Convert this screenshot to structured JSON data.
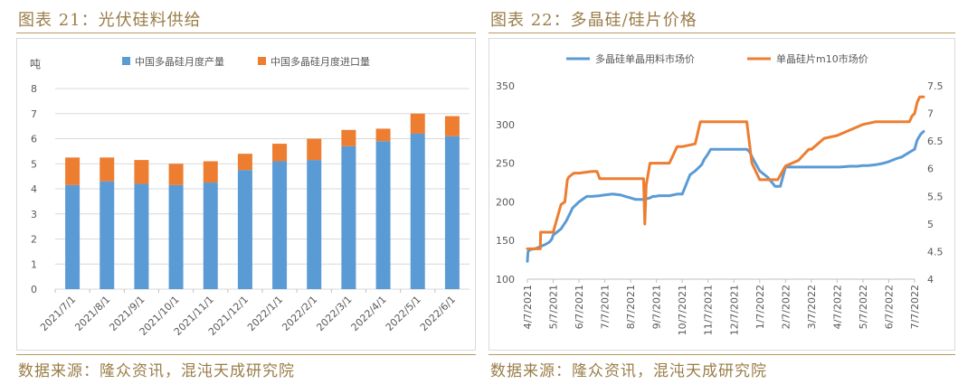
{
  "left": {
    "title": "图表 21：光伏硅料供给",
    "source": "数据来源：隆众资讯，混沌天成研究院"
  },
  "right": {
    "title": "图表 22：多晶硅/硅片价格",
    "source": "数据来源：隆众资讯，混沌天成研究院"
  },
  "colors": {
    "blue": "#5b9bd5",
    "orange": "#ed7d31",
    "gold": "#9a7d48",
    "grid": "#d9d9d9"
  },
  "chart_data": [
    {
      "type": "bar",
      "stacked": true,
      "unit_label": "吨",
      "categories": [
        "2021/7/1",
        "2021/8/1",
        "2021/9/1",
        "2021/10/1",
        "2021/11/1",
        "2021/12/1",
        "2022/1/1",
        "2022/2/1",
        "2022/3/1",
        "2022/4/1",
        "2022/5/1",
        "2022/6/1"
      ],
      "series": [
        {
          "name": "中国多晶硅月度产量",
          "color": "#5b9bd5",
          "values": [
            4.15,
            4.3,
            4.2,
            4.15,
            4.25,
            4.75,
            5.1,
            5.15,
            5.7,
            5.9,
            6.2,
            6.1
          ]
        },
        {
          "name": "中国多晶硅月度进口量",
          "color": "#ed7d31",
          "values": [
            1.1,
            0.95,
            0.95,
            0.85,
            0.85,
            0.65,
            0.7,
            0.85,
            0.65,
            0.5,
            0.8,
            0.8
          ]
        }
      ],
      "ylim": [
        0,
        8
      ],
      "yticks": [
        "0",
        "1",
        "2",
        "3",
        "4",
        "5",
        "6",
        "7",
        "8"
      ],
      "legend": "top",
      "grid": true
    },
    {
      "type": "line",
      "dual_axis": true,
      "x_tick_labels": [
        "4/7/2021",
        "5/7/2021",
        "6/7/2021",
        "7/7/2021",
        "8/7/2021",
        "9/7/2021",
        "10/7/2021",
        "11/7/2021",
        "12/7/2021",
        "1/7/2022",
        "2/7/2022",
        "3/7/2022",
        "4/7/2022",
        "5/7/2022",
        "6/7/2022",
        "7/7/2022"
      ],
      "ylim_left": [
        100,
        350
      ],
      "yticks_left": [
        "100",
        "150",
        "200",
        "250",
        "300",
        "350"
      ],
      "ylim_right": [
        4,
        7.5
      ],
      "yticks_right": [
        "4",
        "4.5",
        "5",
        "5.5",
        "6",
        "6.5",
        "7",
        "7.5"
      ],
      "legend": "top",
      "grid": false,
      "series": [
        {
          "name": "多晶硅单晶用料市场价",
          "axis": "left",
          "color": "#5b9bd5",
          "x": [
            0,
            0.02,
            0.08,
            0.35,
            0.7,
            0.85,
            0.95,
            1.0,
            1.3,
            1.5,
            1.65,
            1.75,
            2.0,
            2.3,
            2.5,
            2.8,
            3.0,
            3.3,
            3.6,
            3.8,
            4.0,
            4.2,
            4.5,
            4.75,
            4.85,
            4.95,
            5.1,
            5.3,
            5.5,
            5.8,
            6.0,
            6.3,
            6.5,
            6.75,
            6.85,
            7.0,
            7.1,
            7.2,
            7.5,
            7.8,
            8.0,
            8.2,
            8.4,
            8.5,
            8.6,
            8.75,
            9.0,
            9.3,
            9.6,
            9.8,
            10.0,
            10.5,
            11.0,
            11.3,
            11.6,
            11.9,
            12.0,
            12.1,
            12.5,
            12.8,
            13.0,
            13.2,
            13.5,
            13.8,
            14.0,
            14.3,
            14.5,
            14.6,
            14.7,
            14.8,
            14.9,
            15.0,
            15.1,
            15.25,
            15.35
          ],
          "values": [
            123,
            135,
            138,
            140,
            145,
            148,
            152,
            157,
            165,
            175,
            185,
            192,
            200,
            207,
            207,
            208,
            209,
            210,
            209,
            207,
            205,
            203,
            203,
            205,
            207,
            207,
            208,
            208,
            208,
            210,
            210,
            235,
            240,
            248,
            255,
            262,
            268,
            268,
            268,
            268,
            268,
            268,
            268,
            268,
            265,
            255,
            240,
            232,
            220,
            220,
            245,
            245,
            245,
            245,
            245,
            245,
            245,
            245,
            246,
            246,
            247,
            247,
            248,
            250,
            252,
            256,
            258,
            260,
            262,
            264,
            266,
            268,
            280,
            288,
            291
          ]
        },
        {
          "name": "单晶硅片m10市场价",
          "axis": "right",
          "color": "#ed7d31",
          "x": [
            0,
            0.1,
            0.5,
            0.51,
            1.0,
            1.3,
            1.45,
            1.5,
            1.55,
            1.6,
            1.8,
            2.0,
            2.5,
            2.7,
            2.8,
            3.5,
            4.0,
            4.3,
            4.5,
            4.55,
            4.6,
            4.75,
            4.8,
            5.0,
            5.5,
            5.8,
            6.0,
            6.5,
            6.7,
            7.0,
            7.5,
            8.0,
            8.5,
            8.7,
            9.0,
            9.3,
            9.5,
            9.7,
            10.0,
            10.5,
            10.9,
            11.0,
            11.5,
            12.0,
            12.5,
            13.0,
            13.5,
            14.0,
            14.5,
            14.8,
            14.9,
            15.0,
            15.1,
            15.2,
            15.35
          ],
          "values": [
            4.55,
            4.55,
            4.55,
            4.85,
            4.85,
            5.35,
            5.4,
            5.6,
            5.8,
            5.85,
            5.92,
            5.92,
            5.95,
            5.95,
            5.82,
            5.82,
            5.82,
            5.82,
            5.82,
            5.0,
            5.7,
            6.1,
            6.1,
            6.1,
            6.1,
            6.4,
            6.4,
            6.45,
            6.85,
            6.85,
            6.85,
            6.85,
            6.85,
            6.1,
            5.8,
            5.8,
            5.8,
            5.8,
            6.05,
            6.15,
            6.35,
            6.35,
            6.55,
            6.6,
            6.7,
            6.8,
            6.85,
            6.85,
            6.85,
            6.85,
            6.95,
            7.0,
            7.2,
            7.3,
            7.3
          ]
        }
      ]
    }
  ]
}
